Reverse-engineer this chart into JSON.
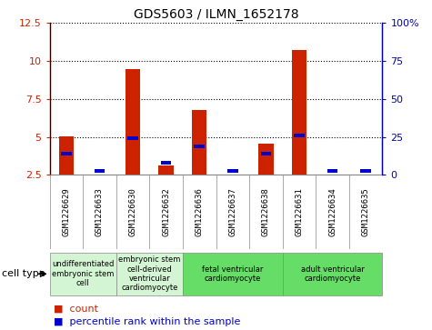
{
  "title": "GDS5603 / ILMN_1652178",
  "samples": [
    "GSM1226629",
    "GSM1226633",
    "GSM1226630",
    "GSM1226632",
    "GSM1226636",
    "GSM1226637",
    "GSM1226638",
    "GSM1226631",
    "GSM1226634",
    "GSM1226635"
  ],
  "count_values": [
    5.05,
    2.5,
    9.45,
    3.1,
    6.75,
    2.5,
    4.55,
    10.75,
    2.5,
    2.5
  ],
  "percentile_values": [
    14,
    2.5,
    24,
    8,
    19,
    2.5,
    14,
    26,
    2.5,
    2.5
  ],
  "ylim_left": [
    2.5,
    12.5
  ],
  "ylim_right": [
    0,
    100
  ],
  "yticks_left": [
    2.5,
    5.0,
    7.5,
    10.0,
    12.5
  ],
  "yticks_right": [
    0,
    25,
    50,
    75,
    100
  ],
  "cell_types": [
    {
      "label": "undifferentiated\nembryonic stem\ncell",
      "start": 0,
      "end": 2,
      "color": "#d4f5d4"
    },
    {
      "label": "embryonic stem\ncell-derived\nventricular\ncardiomyocyte",
      "start": 2,
      "end": 4,
      "color": "#d4f5d4"
    },
    {
      "label": "fetal ventricular\ncardiomyocyte",
      "start": 4,
      "end": 7,
      "color": "#66dd66"
    },
    {
      "label": "adult ventricular\ncardiomyocyte",
      "start": 7,
      "end": 10,
      "color": "#66dd66"
    }
  ],
  "bar_color": "#cc2200",
  "percentile_color": "#0000cc",
  "bg_color": "#d8d8d8",
  "plot_bg": "#ffffff",
  "left_axis_color": "#cc2200",
  "right_axis_color": "#0000bb",
  "perc_marker_size": 0.4
}
